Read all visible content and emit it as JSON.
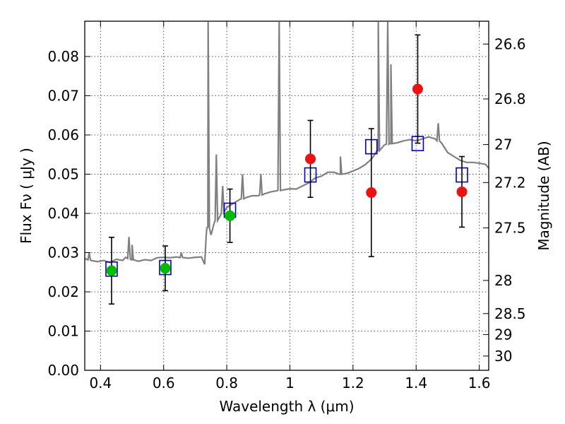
{
  "chart_data": {
    "type": "scatter",
    "xlabel": "Wavelength  λ (μm)",
    "ylabel": "Flux  Fν  ( μJy )",
    "ylabel_right": "Magnitude (AB)",
    "xlim": [
      0.35,
      1.63
    ],
    "ylim": [
      0.0,
      0.089
    ],
    "x_ticks": [
      0.4,
      0.6,
      0.8,
      1.0,
      1.2,
      1.4,
      1.6
    ],
    "x_tick_labels": [
      "0.4",
      "0.6",
      "0.8",
      "1",
      "1.2",
      "1.4",
      "1.6"
    ],
    "y_ticks": [
      0.0,
      0.01,
      0.02,
      0.03,
      0.04,
      0.05,
      0.06,
      0.07,
      0.08
    ],
    "y_tick_labels": [
      "0.00",
      "0.01",
      "0.02",
      "0.03",
      "0.04",
      "0.05",
      "0.06",
      "0.07",
      "0.08"
    ],
    "right_ticks_mag": [
      26.6,
      26.8,
      27,
      27.2,
      27.5,
      28,
      28.5,
      29,
      30
    ],
    "right_tick_labels": [
      "26.6",
      "26.8",
      "27",
      "27.2",
      "27.5",
      "28",
      "28.5",
      "29",
      "30"
    ],
    "grid": true,
    "colors": {
      "model": "#808080",
      "model_points": "#0000cc",
      "green_points": "#00bb00",
      "red_points": "#ee1111",
      "errorbar": "#000000"
    },
    "series": [
      {
        "kind": "line",
        "points": [
          [
            0.35,
            0.0285
          ],
          [
            0.37,
            0.028
          ],
          [
            0.39,
            0.0277
          ],
          [
            0.41,
            0.028
          ],
          [
            0.43,
            0.0275
          ],
          [
            0.45,
            0.0283
          ],
          [
            0.47,
            0.028
          ],
          [
            0.48,
            0.0288
          ],
          [
            0.5,
            0.0282
          ],
          [
            0.52,
            0.0278
          ],
          [
            0.54,
            0.0282
          ],
          [
            0.56,
            0.028
          ],
          [
            0.58,
            0.0287
          ],
          [
            0.6,
            0.0288
          ],
          [
            0.62,
            0.0287
          ],
          [
            0.64,
            0.0289
          ],
          [
            0.66,
            0.0287
          ],
          [
            0.68,
            0.0286
          ],
          [
            0.7,
            0.0288
          ],
          [
            0.72,
            0.0289
          ],
          [
            0.73,
            0.027
          ],
          [
            0.735,
            0.0345
          ],
          [
            0.74,
            0.0365
          ],
          [
            0.75,
            0.0345
          ],
          [
            0.76,
            0.0375
          ],
          [
            0.78,
            0.0395
          ],
          [
            0.8,
            0.0415
          ],
          [
            0.82,
            0.0425
          ],
          [
            0.84,
            0.0435
          ],
          [
            0.86,
            0.044
          ],
          [
            0.88,
            0.0445
          ],
          [
            0.9,
            0.0445
          ],
          [
            0.92,
            0.045
          ],
          [
            0.94,
            0.0455
          ],
          [
            0.96,
            0.0458
          ],
          [
            0.98,
            0.046
          ],
          [
            1.0,
            0.0463
          ],
          [
            1.02,
            0.0462
          ],
          [
            1.04,
            0.047
          ],
          [
            1.06,
            0.0478
          ],
          [
            1.08,
            0.049
          ],
          [
            1.1,
            0.0495
          ],
          [
            1.12,
            0.0505
          ],
          [
            1.14,
            0.0505
          ],
          [
            1.16,
            0.05
          ],
          [
            1.18,
            0.0502
          ],
          [
            1.2,
            0.0508
          ],
          [
            1.22,
            0.0515
          ],
          [
            1.24,
            0.0525
          ],
          [
            1.26,
            0.054
          ],
          [
            1.28,
            0.056
          ],
          [
            1.3,
            0.0575
          ],
          [
            1.32,
            0.0578
          ],
          [
            1.34,
            0.058
          ],
          [
            1.36,
            0.0585
          ],
          [
            1.38,
            0.0588
          ],
          [
            1.4,
            0.0585
          ],
          [
            1.42,
            0.059
          ],
          [
            1.44,
            0.0595
          ],
          [
            1.46,
            0.059
          ],
          [
            1.48,
            0.058
          ],
          [
            1.5,
            0.0555
          ],
          [
            1.52,
            0.0545
          ],
          [
            1.54,
            0.0535
          ],
          [
            1.56,
            0.053
          ],
          [
            1.58,
            0.053
          ],
          [
            1.6,
            0.0528
          ],
          [
            1.62,
            0.0525
          ],
          [
            1.63,
            0.0515
          ]
        ],
        "emission_lines": [
          {
            "x": 0.364,
            "peak": 0.03
          },
          {
            "x": 0.49,
            "peak": 0.034
          },
          {
            "x": 0.5,
            "peak": 0.032
          },
          {
            "x": 0.656,
            "peak": 0.03
          },
          {
            "x": 0.741,
            "peak": 0.09
          },
          {
            "x": 0.767,
            "peak": 0.055
          },
          {
            "x": 0.787,
            "peak": 0.047
          },
          {
            "x": 0.85,
            "peak": 0.05
          },
          {
            "x": 0.908,
            "peak": 0.05
          },
          {
            "x": 0.966,
            "peak": 0.089
          },
          {
            "x": 1.16,
            "peak": 0.0545
          },
          {
            "x": 1.28,
            "peak": 0.09
          },
          {
            "x": 1.31,
            "peak": 0.09
          },
          {
            "x": 1.32,
            "peak": 0.078
          },
          {
            "x": 1.47,
            "peak": 0.063
          }
        ]
      },
      {
        "kind": "open-squares",
        "x": [
          0.435,
          0.605,
          0.81,
          1.065,
          1.258,
          1.405,
          1.545
        ],
        "y": [
          0.0258,
          0.0262,
          0.0408,
          0.0498,
          0.057,
          0.0578,
          0.0498
        ]
      },
      {
        "kind": "filled-circles",
        "x": [
          0.435,
          0.605,
          0.81
        ],
        "y": [
          0.0254,
          0.026,
          0.0394
        ],
        "err": [
          0.0085,
          0.0057,
          0.0068
        ]
      },
      {
        "kind": "filled-circles",
        "x": [
          1.065,
          1.258,
          1.405,
          1.545
        ],
        "y": [
          0.0539,
          0.0453,
          0.0717,
          0.0455
        ],
        "err": [
          0.0098,
          0.0163,
          0.0138,
          0.009
        ]
      }
    ]
  }
}
